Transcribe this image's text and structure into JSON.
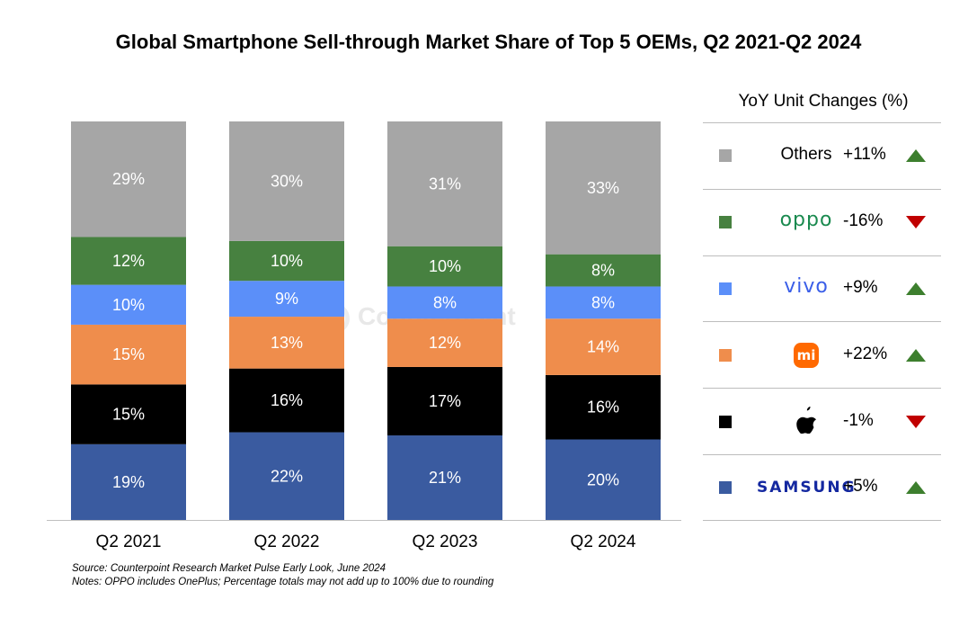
{
  "title": "Global Smartphone Sell-through Market Share of Top 5 OEMs, Q2 2021-Q2 2024",
  "chart_data": {
    "type": "bar",
    "stacked": true,
    "categories": [
      "Q2 2021",
      "Q2 2022",
      "Q2 2023",
      "Q2 2024"
    ],
    "series": [
      {
        "name": "SAMSUNG",
        "color": "#3a5ba0",
        "values": [
          19,
          22,
          21,
          20
        ],
        "labels": [
          "19%",
          "22%",
          "21%",
          "20%"
        ]
      },
      {
        "name": "Apple",
        "color": "#000000",
        "values": [
          15,
          16,
          17,
          16
        ],
        "labels": [
          "15%",
          "16%",
          "17%",
          "16%"
        ]
      },
      {
        "name": "Xiaomi",
        "color": "#ef8d4c",
        "values": [
          15,
          13,
          12,
          14
        ],
        "labels": [
          "15%",
          "13%",
          "12%",
          "14%"
        ]
      },
      {
        "name": "vivo",
        "color": "#5b8ff9",
        "values": [
          10,
          9,
          8,
          8
        ],
        "labels": [
          "10%",
          "9%",
          "8%",
          "8%"
        ]
      },
      {
        "name": "oppo",
        "color": "#478140",
        "values": [
          12,
          10,
          10,
          8
        ],
        "labels": [
          "12%",
          "10%",
          "10%",
          "8%"
        ]
      },
      {
        "name": "Others",
        "color": "#a6a6a6",
        "values": [
          29,
          30,
          31,
          33
        ],
        "labels": [
          "29%",
          "30%",
          "31%",
          "33%"
        ]
      }
    ],
    "ylim": [
      0,
      100
    ],
    "grid": false,
    "legend_placement": "right"
  },
  "legend": {
    "title": "YoY Unit Changes (%)",
    "items": [
      {
        "name": "Others",
        "change": "+11%",
        "direction": "up",
        "color": "#a6a6a6",
        "icon": "text"
      },
      {
        "name": "oppo",
        "change": "-16%",
        "direction": "down",
        "color": "#478140",
        "icon": "oppo-logo"
      },
      {
        "name": "vivo",
        "change": "+9%",
        "direction": "up",
        "color": "#5b8ff9",
        "icon": "vivo-logo"
      },
      {
        "name": "mi",
        "change": "+22%",
        "direction": "up",
        "color": "#ef8d4c",
        "icon": "xiaomi-logo"
      },
      {
        "name": "",
        "change": "-1%",
        "direction": "down",
        "color": "#000000",
        "icon": "apple-logo"
      },
      {
        "name": "SAMSUNG",
        "change": "+5%",
        "direction": "up",
        "color": "#3a5ba0",
        "icon": "samsung-logo"
      }
    ]
  },
  "arrow_colors": {
    "up": "#3d7f2e",
    "down": "#c00000"
  },
  "watermark": "Counterpoint",
  "footer": {
    "source": "Source: Counterpoint Research Market Pulse Early Look, June 2024",
    "notes": "Notes: OPPO includes OnePlus; Percentage totals may not add up to 100% due to rounding"
  }
}
